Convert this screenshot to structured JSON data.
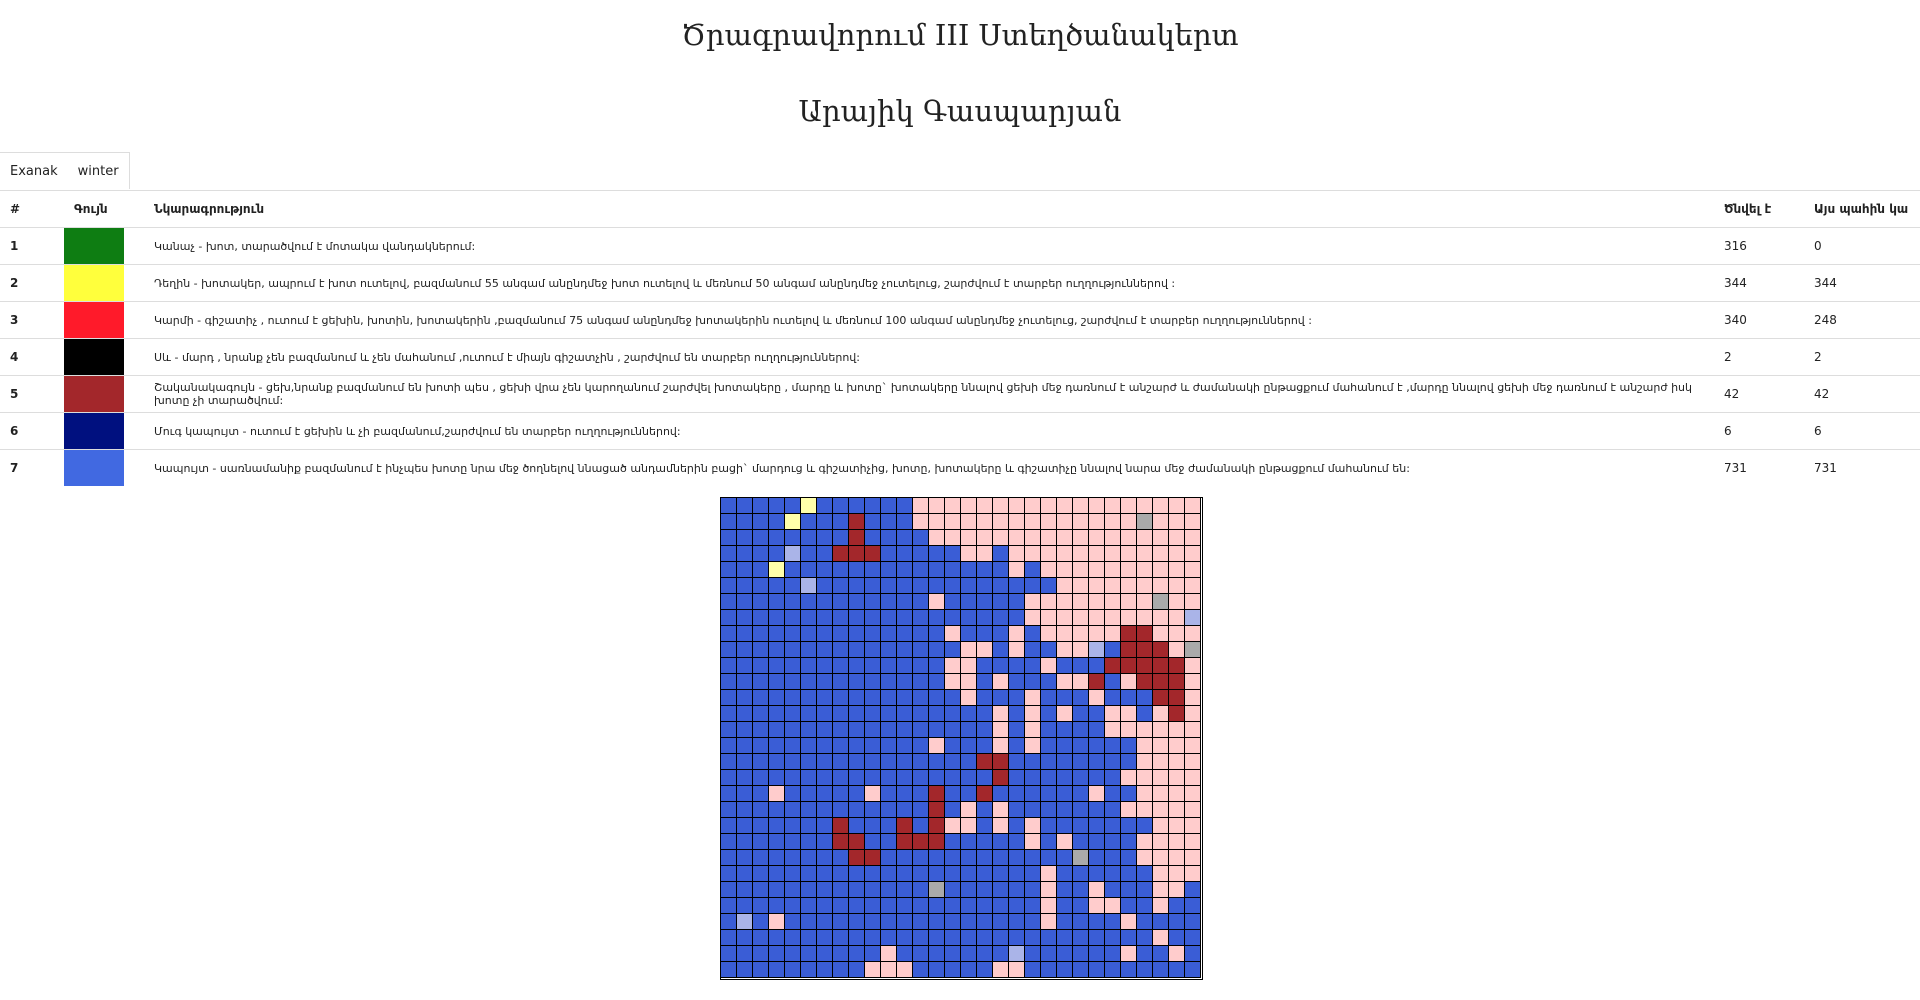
{
  "header": {
    "title": "Ծրագրավորում III Ստեղծանակերտ",
    "author": "Արայիկ Գասպարյան"
  },
  "season": {
    "label": "Exanak",
    "value": "winter"
  },
  "legend": {
    "headers": [
      "#",
      "Գույն",
      "Նկարագրություն",
      "Ծնվել է",
      "Այս պահին կա"
    ],
    "rows": [
      {
        "n": "1",
        "color": "#0e7d12",
        "desc": "Կանաչ - խոտ, տարածվում է մոտակա վանդակներում:",
        "born": "316",
        "now": "0"
      },
      {
        "n": "2",
        "color": "#ffff3c",
        "desc": "Դեղին - խոտակեր, ապրում է խոտ ուտելով, բազմանում 55 անգամ անընդմեջ խոտ ուտելով և մեռնում 50 անգամ անընդմեջ չուտելուց, շարժվում է տարբեր ուղղություններով :",
        "born": "344",
        "now": "344"
      },
      {
        "n": "3",
        "color": "#ff1a2a",
        "desc": "Կարմի - գիշատիչ , ուտում է ցեխին, խոտին, խոտակերին ,բազմանում 75 անգամ անընդմեջ խոտակերին ուտելով և մեռնում 100 անգամ անընդմեջ չուտելուց, շարժվում է տարբեր ուղղություններով :",
        "born": "340",
        "now": "248"
      },
      {
        "n": "4",
        "color": "#000000",
        "desc": "Սև - մարդ , նրանք չեն բազմանում և չեն մահանում ,ուտում է միայն գիշատչին , շարժվում են տարբեր ուղղություններով:",
        "born": "2",
        "now": "2"
      },
      {
        "n": "5",
        "color": "#a3272b",
        "desc": "Շականակագույն - ցեխ,նրանք բազմանում են խոտի պես , ցեխի վրա չեն կարողանում շարժվել խոտակերը , մարդը և խոտը` խոտակերը ննալով ցեխի մեջ դառնում է անշարժ և ժամանակի ընթացքում մահանում է ,մարդը ննալով ցեխի մեջ դառնում է անշարժ իսկ խոտը չի տարածվում:",
        "born": "42",
        "now": "42"
      },
      {
        "n": "6",
        "color": "#00107f",
        "desc": "Մուգ կապույտ - ուտում է ցեխին և չի բազմանում,շարժվում են տարբեր ուղղություններով:",
        "born": "6",
        "now": "6"
      },
      {
        "n": "7",
        "color": "#4169e1",
        "desc": "Կապույտ - սառնամանիք բազմանում է ինչպես խոտը նրա մեջ ծողնելով ննացած անդամներին բացի` մարդուց և գիշատիչից, խոտը, խոտակերը և գիշատիչը ննալով նարա մեջ ժամանակի ընթացքում մահանում են:",
        "born": "731",
        "now": "731"
      }
    ]
  },
  "board": {
    "size": 30,
    "palette": {
      "B": "#3a5dd6",
      "P": "#ffcccc",
      "M": "#a3272b",
      "Y": "#ffffaa",
      "G": "#aaaaaa",
      "L": "#aab4e8",
      "W": "#ffffff"
    },
    "rows": [
      "BBBBBYBBBBBBPPPPPPPPPPPPPPPPPP",
      "BBBBYBBBMBBBPPPPPPPPPPPPPPGPPP",
      "BBBBBBBBMBBBBPPPPPPPPPPPPPPPPP",
      "BBBBLBBMMMBBBBBPPBPPPPPPPPPPPP",
      "BBBYBBBBBBBBBBBBBBPBPPPPPPPPPP",
      "BBBBBLBBBBBBBBBBBBBBBPPPPPPPPP",
      "BBBBBBBBBBBBBPBBBBBPPPPPPPPGPP",
      "BBBBBBBBBBBBBBBBBBBPPPPPPPPPPL",
      "BBBBBBBBBBBBBBPBBBPBPPPPPMMPPP",
      "BBBBBBBBBBBBBBBPPBPBBPPLBMMMPG",
      "BBBBBBBBBBBBBBPPBBBBPBBBMMMMMP",
      "BBBBBBBBBBBBBBPPBPBBBPPMBPMMMP",
      "BBBBBBBBBBBBBBBPBBBPBBBPBBBMMP",
      "BBBBBBBBBBBBBBBBBPBPBPBBPPBPMP",
      "BBBBBBBBBBBBBBBBBPBPBBBBPPPPPP",
      "BBBBBBBBBBBBBPBBBPBPBBBBBBPPPP",
      "BBBBBBBBBBBBBBBBMMBBBBBBBBPPPP",
      "BBBBBBBBBBBBBBBBBMBBBBBBBPPPPP",
      "BBBPBBBBBPBBBMBBMBBBBBBPBBPPPP",
      "BBBBBBBBBBBBBMBPBPBBBBBBBPPPPP",
      "BBBBBBBMBBBMBMPPBPBPBBBBBBBPPP",
      "BBBBBBBMMBBMMMBBBBBPBPBBBBPPPP",
      "BBBBBBBBMMBBBBBBBBBBBBGBBBPPPP",
      "BBBBBBBBBBBBBBBBBBBBPBBBBBBPPP",
      "BBBBBBBBBBBBBGBBBBBBPBBPBBBPPB",
      "BBBBBBBBBBBBBBBBBBBBPBBPPBBPBB",
      "BLBPBBBBBBBBBBBBBBBBPBBBBPBBBB",
      "BBBBBBBBBBBBBBBBBBBBBBBBBBBPBB",
      "BBBBBBBBBBPBBBBBBBLBBBBBBPBBPB",
      "BBBBBBBBBPPPBBBBBPPBBBBBBBBBBB"
    ]
  }
}
